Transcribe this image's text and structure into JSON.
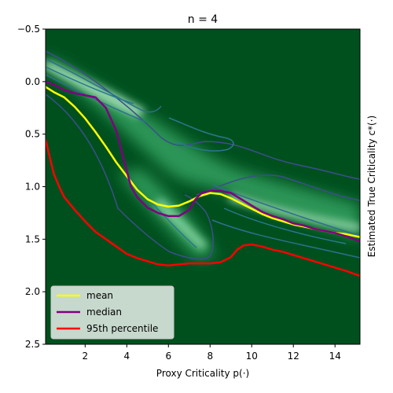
{
  "chart_data": {
    "type": "line",
    "title": "n = 4",
    "xlabel": "Proxy Criticality p(·)",
    "ylabel": "Estimated True Criticality c*(·)",
    "xlim": [
      0.1,
      15.2
    ],
    "ylim": [
      2.5,
      -0.5
    ],
    "y_inverted": true,
    "x_ticks": [
      2,
      4,
      6,
      8,
      10,
      12,
      14
    ],
    "y_ticks": [
      -0.5,
      0.0,
      0.5,
      1.0,
      1.5,
      2.0,
      2.5
    ],
    "y_tick_labels": [
      "−0.5",
      "0.0",
      "0.5",
      "1.0",
      "1.5",
      "2.0",
      "2.5"
    ],
    "background": "density heatmap (greens) with contour lines",
    "legend_position": "lower-left",
    "series": [
      {
        "name": "mean",
        "color": "#ffff00",
        "x": [
          0.1,
          0.5,
          1.0,
          1.5,
          2.0,
          2.5,
          3.0,
          3.5,
          4.0,
          4.5,
          5.0,
          5.5,
          6.0,
          6.5,
          7.0,
          7.5,
          8.0,
          8.5,
          9.0,
          9.5,
          10.0,
          10.5,
          11.0,
          11.5,
          12.0,
          12.5,
          13.0,
          13.5,
          14.0,
          14.5,
          15.2
        ],
        "y": [
          0.05,
          0.1,
          0.15,
          0.24,
          0.35,
          0.48,
          0.62,
          0.77,
          0.9,
          1.03,
          1.12,
          1.17,
          1.19,
          1.18,
          1.14,
          1.09,
          1.06,
          1.07,
          1.11,
          1.16,
          1.21,
          1.26,
          1.3,
          1.33,
          1.36,
          1.38,
          1.4,
          1.42,
          1.44,
          1.45,
          1.48
        ]
      },
      {
        "name": "median",
        "color": "#800080",
        "x": [
          0.1,
          0.5,
          1.0,
          1.5,
          2.0,
          2.5,
          3.0,
          3.5,
          3.8,
          4.0,
          4.2,
          4.5,
          5.0,
          5.5,
          6.0,
          6.5,
          7.0,
          7.3,
          7.6,
          8.0,
          8.5,
          9.0,
          9.5,
          10.0,
          10.5,
          11.0,
          11.5,
          12.0,
          12.5,
          13.0,
          13.5,
          14.0,
          14.5,
          15.2
        ],
        "y": [
          0.0,
          0.03,
          0.08,
          0.11,
          0.13,
          0.15,
          0.25,
          0.47,
          0.7,
          0.85,
          1.0,
          1.1,
          1.2,
          1.25,
          1.28,
          1.28,
          1.22,
          1.12,
          1.06,
          1.04,
          1.04,
          1.06,
          1.12,
          1.18,
          1.24,
          1.28,
          1.31,
          1.35,
          1.37,
          1.4,
          1.42,
          1.44,
          1.47,
          1.52
        ]
      },
      {
        "name": "95th percentile",
        "color": "#ff0000",
        "x": [
          0.1,
          0.3,
          0.5,
          0.8,
          1.0,
          1.5,
          2.0,
          2.5,
          3.0,
          3.5,
          4.0,
          4.5,
          5.0,
          5.5,
          6.0,
          6.5,
          7.0,
          7.5,
          8.0,
          8.5,
          9.0,
          9.3,
          9.6,
          10.0,
          10.5,
          11.0,
          11.5,
          12.0,
          12.5,
          13.0,
          13.5,
          14.0,
          14.5,
          15.2
        ],
        "y": [
          0.55,
          0.72,
          0.88,
          1.02,
          1.1,
          1.22,
          1.33,
          1.43,
          1.5,
          1.57,
          1.64,
          1.68,
          1.71,
          1.74,
          1.75,
          1.74,
          1.73,
          1.73,
          1.73,
          1.72,
          1.67,
          1.6,
          1.56,
          1.55,
          1.57,
          1.6,
          1.62,
          1.65,
          1.68,
          1.71,
          1.74,
          1.77,
          1.8,
          1.85
        ]
      }
    ]
  }
}
